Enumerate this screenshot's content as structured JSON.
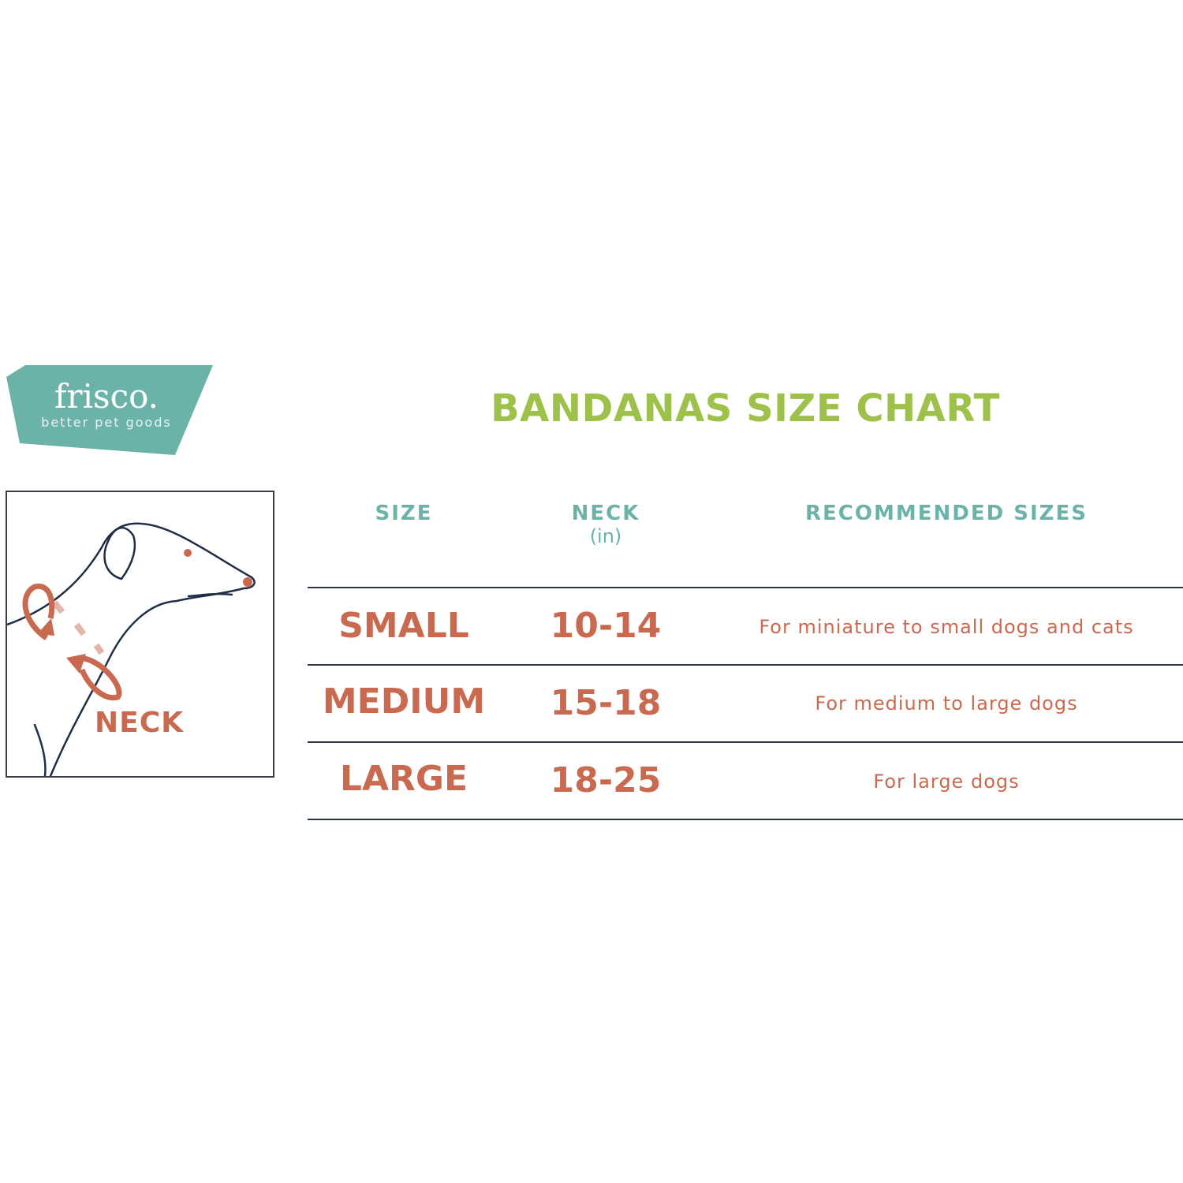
{
  "logo": {
    "name": "frisco.",
    "tagline": "better pet goods",
    "color": "#6bb3a8"
  },
  "illustration": {
    "label": "NECK",
    "accent_color": "#c96a50"
  },
  "title": "BANDANAS SIZE CHART",
  "table": {
    "headers": {
      "size": "SIZE",
      "neck": "NECK",
      "neck_unit": "(in)",
      "recommended": "RECOMMENDED SIZES"
    },
    "rows": [
      {
        "size": "SMALL",
        "neck": "10-14",
        "recommended": "For miniature to small dogs and cats"
      },
      {
        "size": "MEDIUM",
        "neck": "15-18",
        "recommended": "For medium to large dogs"
      },
      {
        "size": "LARGE",
        "neck": "18-25",
        "recommended": "For large dogs"
      }
    ]
  },
  "colors": {
    "title": "#9dc14a",
    "header": "#6bb3a8",
    "body": "#c96a50",
    "rule": "#2a3340"
  }
}
